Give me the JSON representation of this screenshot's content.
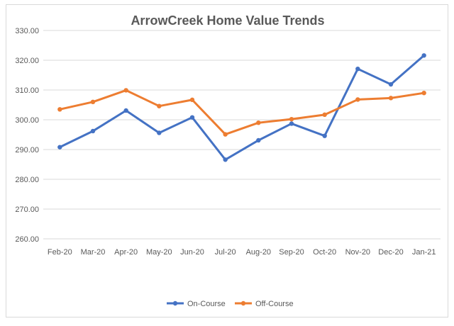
{
  "chart_data": {
    "type": "line",
    "title": "ArrowCreek Home Value Trends",
    "xlabel": "",
    "ylabel": "",
    "categories": [
      "Feb-20",
      "Mar-20",
      "Apr-20",
      "May-20",
      "Jun-20",
      "Jul-20",
      "Aug-20",
      "Sep-20",
      "Oct-20",
      "Nov-20",
      "Dec-20",
      "Jan-21"
    ],
    "ylim": [
      260,
      330
    ],
    "yticks": [
      "260.00",
      "270.00",
      "280.00",
      "290.00",
      "300.00",
      "310.00",
      "320.00",
      "330.00"
    ],
    "grid": true,
    "legend_position": "bottom",
    "series": [
      {
        "name": "On-Course",
        "color": "#4472c4",
        "values": [
          290.8,
          296.2,
          303.1,
          295.6,
          300.8,
          286.6,
          293.1,
          298.7,
          294.6,
          317.1,
          311.9,
          321.6
        ]
      },
      {
        "name": "Off-Course",
        "color": "#ed7d31",
        "values": [
          303.5,
          306.0,
          309.9,
          304.6,
          306.7,
          295.1,
          299.0,
          300.2,
          301.7,
          306.8,
          307.3,
          309.0
        ]
      }
    ]
  }
}
